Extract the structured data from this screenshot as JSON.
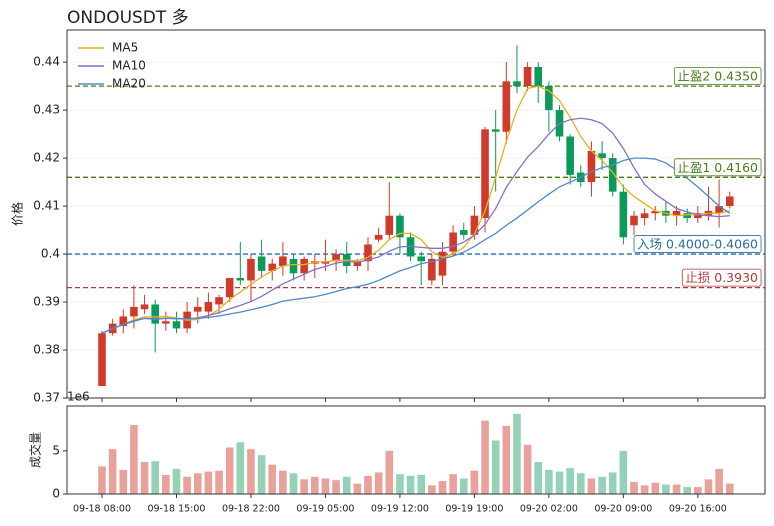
{
  "chart_data": {
    "type": "candlestick",
    "title": "ONDOUSDT  多",
    "y_label": "价格",
    "categories": [
      "09-18 08:00",
      null,
      null,
      null,
      null,
      null,
      null,
      "09-18 15:00",
      null,
      null,
      null,
      null,
      null,
      null,
      "09-18 22:00",
      null,
      null,
      null,
      null,
      null,
      null,
      "09-19 05:00",
      null,
      null,
      null,
      null,
      null,
      null,
      "09-19 12:00",
      null,
      null,
      null,
      null,
      null,
      null,
      "09-19 19:00",
      null,
      null,
      null,
      null,
      null,
      null,
      "09-20 02:00",
      null,
      null,
      null,
      null,
      null,
      null,
      "09-20 09:00",
      null,
      null,
      null,
      null,
      null,
      null,
      "09-20 16:00",
      null,
      null,
      null
    ],
    "open": [
      0.3725,
      0.3835,
      0.385,
      0.387,
      0.3885,
      0.3895,
      0.3855,
      0.386,
      0.3845,
      0.388,
      0.388,
      0.3895,
      0.391,
      0.395,
      0.3945,
      0.3995,
      0.3965,
      0.3975,
      0.399,
      0.396,
      0.398,
      0.398,
      0.3985,
      0.4,
      0.3975,
      0.3985,
      0.403,
      0.404,
      0.408,
      0.4035,
      0.3995,
      0.3945,
      0.3955,
      0.4005,
      0.405,
      0.404,
      0.4075,
      0.426,
      0.4255,
      0.436,
      0.435,
      0.439,
      0.435,
      0.43,
      0.4245,
      0.417,
      0.415,
      0.421,
      0.42,
      0.413,
      0.406,
      0.4075,
      0.4085,
      0.409,
      0.408,
      0.4085,
      0.4075,
      0.408,
      0.4085,
      0.41
    ],
    "high": [
      0.384,
      0.3865,
      0.3885,
      0.3935,
      0.3915,
      0.3905,
      0.388,
      0.388,
      0.39,
      0.391,
      0.392,
      0.3915,
      0.395,
      0.4025,
      0.4,
      0.403,
      0.399,
      0.4025,
      0.4,
      0.3995,
      0.4,
      0.403,
      0.401,
      0.4025,
      0.399,
      0.4035,
      0.4055,
      0.415,
      0.4085,
      0.4045,
      0.4005,
      0.4,
      0.4025,
      0.406,
      0.4065,
      0.41,
      0.4265,
      0.43,
      0.44,
      0.4435,
      0.44,
      0.44,
      0.436,
      0.431,
      0.425,
      0.4185,
      0.4235,
      0.4235,
      0.421,
      0.4145,
      0.409,
      0.4095,
      0.41,
      0.411,
      0.41,
      0.4095,
      0.41,
      0.414,
      0.4155,
      0.413
    ],
    "low": [
      0.3725,
      0.383,
      0.3835,
      0.3845,
      0.3875,
      0.3795,
      0.384,
      0.3835,
      0.3835,
      0.3855,
      0.3865,
      0.3875,
      0.39,
      0.3935,
      0.39,
      0.395,
      0.3945,
      0.3955,
      0.3945,
      0.3945,
      0.395,
      0.3965,
      0.3965,
      0.396,
      0.3965,
      0.3965,
      0.4025,
      0.403,
      0.4,
      0.3985,
      0.3935,
      0.3935,
      0.3935,
      0.3995,
      0.403,
      0.403,
      0.4045,
      0.413,
      0.423,
      0.4335,
      0.434,
      0.4315,
      0.4255,
      0.4235,
      0.4145,
      0.414,
      0.412,
      0.4175,
      0.412,
      0.402,
      0.404,
      0.406,
      0.407,
      0.4065,
      0.406,
      0.4065,
      0.4065,
      0.407,
      0.4055,
      0.4095
    ],
    "close": [
      0.3835,
      0.3855,
      0.387,
      0.389,
      0.3895,
      0.3855,
      0.386,
      0.3845,
      0.388,
      0.389,
      0.39,
      0.391,
      0.395,
      0.3945,
      0.399,
      0.3965,
      0.398,
      0.3995,
      0.396,
      0.399,
      0.3985,
      0.3985,
      0.4,
      0.3975,
      0.3985,
      0.402,
      0.404,
      0.408,
      0.4035,
      0.3995,
      0.3985,
      0.399,
      0.4005,
      0.4045,
      0.404,
      0.408,
      0.426,
      0.4255,
      0.436,
      0.435,
      0.439,
      0.435,
      0.43,
      0.4245,
      0.4165,
      0.415,
      0.4215,
      0.42,
      0.413,
      0.4035,
      0.408,
      0.4085,
      0.409,
      0.408,
      0.409,
      0.4075,
      0.4085,
      0.409,
      0.41,
      0.412
    ],
    "up_color": "#d03a2b",
    "down_color": "#0c9a5a",
    "series": [
      {
        "name": "MA5",
        "color": "#e8b21a",
        "values": [
          0.3835,
          0.3845,
          0.3853,
          0.3863,
          0.3869,
          0.3869,
          0.387,
          0.3867,
          0.3862,
          0.3864,
          0.3871,
          0.3885,
          0.3905,
          0.3921,
          0.3937,
          0.3952,
          0.3965,
          0.3975,
          0.3978,
          0.3978,
          0.3983,
          0.3984,
          0.3987,
          0.3987,
          0.3986,
          0.3993,
          0.4008,
          0.403,
          0.4043,
          0.4043,
          0.403,
          0.4005,
          0.3993,
          0.4,
          0.4014,
          0.4042,
          0.409,
          0.416,
          0.4235,
          0.43,
          0.4345,
          0.435,
          0.434,
          0.432,
          0.4285,
          0.4245,
          0.4215,
          0.4195,
          0.417,
          0.414,
          0.412,
          0.4105,
          0.409,
          0.4085,
          0.408,
          0.4082,
          0.4082,
          0.4085,
          0.4085,
          0.409
        ]
      },
      {
        "name": "MA10",
        "color": "#8a6fc9",
        "values": [
          0.3835,
          0.3845,
          0.3853,
          0.3861,
          0.3866,
          0.3864,
          0.3866,
          0.3865,
          0.3865,
          0.3867,
          0.3872,
          0.3878,
          0.3886,
          0.3893,
          0.3901,
          0.3912,
          0.3925,
          0.3938,
          0.3948,
          0.3958,
          0.3968,
          0.3974,
          0.3981,
          0.3985,
          0.3983,
          0.3988,
          0.3994,
          0.4006,
          0.4015,
          0.4016,
          0.4014,
          0.4012,
          0.4012,
          0.4016,
          0.4025,
          0.4039,
          0.4062,
          0.4095,
          0.4139,
          0.4172,
          0.4202,
          0.4224,
          0.425,
          0.4272,
          0.428,
          0.4283,
          0.428,
          0.4272,
          0.4252,
          0.422,
          0.418,
          0.4145,
          0.4125,
          0.411,
          0.4095,
          0.4088,
          0.4082,
          0.408,
          0.4078,
          0.408
        ]
      },
      {
        "name": "MA20",
        "color": "#4a8ccc",
        "values": [
          0.3835,
          0.3845,
          0.3853,
          0.386,
          0.3866,
          0.3865,
          0.3866,
          0.3866,
          0.3865,
          0.3866,
          0.3868,
          0.3871,
          0.3875,
          0.3879,
          0.3884,
          0.3889,
          0.3895,
          0.3902,
          0.3905,
          0.3908,
          0.3911,
          0.3916,
          0.3922,
          0.3928,
          0.3932,
          0.3937,
          0.3945,
          0.3955,
          0.3965,
          0.3972,
          0.398,
          0.3984,
          0.399,
          0.3996,
          0.4004,
          0.4016,
          0.403,
          0.4043,
          0.406,
          0.4075,
          0.4092,
          0.4109,
          0.4125,
          0.414,
          0.415,
          0.416,
          0.4172,
          0.418,
          0.4186,
          0.4195,
          0.42,
          0.42,
          0.4198,
          0.419,
          0.4175,
          0.4158,
          0.414,
          0.412,
          0.41,
          0.4085
        ]
      }
    ],
    "levels": [
      {
        "label": "止盈2 0.4350",
        "value": 0.435,
        "color": "#4a7d1c"
      },
      {
        "label": "止盈1 0.4160",
        "value": 0.416,
        "color": "#4a7d1c"
      },
      {
        "label": "入场 0.4000-0.4060",
        "value": 0.4,
        "color": "#2a6ca8"
      },
      {
        "label": "止损 0.3930",
        "value": 0.393,
        "color": "#b03a3a"
      }
    ],
    "ylim": [
      0.37,
      0.4467
    ],
    "yticks": [
      0.37,
      0.38,
      0.39,
      0.4,
      0.41,
      0.42,
      0.43,
      0.44
    ],
    "grid": true,
    "legend": "upper left",
    "volume": {
      "y_label": "成交量",
      "offset_label": "1e6",
      "values": [
        3.2,
        5.2,
        2.8,
        8.0,
        3.7,
        3.8,
        2.2,
        2.9,
        2.0,
        2.4,
        2.6,
        2.7,
        5.4,
        6.0,
        5.2,
        4.5,
        3.4,
        2.7,
        2.4,
        1.7,
        2.0,
        1.8,
        1.6,
        2.0,
        1.2,
        2.1,
        2.5,
        5.0,
        2.3,
        2.1,
        2.2,
        1.0,
        1.5,
        2.3,
        1.8,
        2.7,
        8.5,
        6.2,
        7.9,
        9.3,
        5.7,
        3.7,
        2.8,
        2.6,
        3.0,
        2.4,
        1.8,
        2.0,
        2.5,
        5.0,
        1.4,
        1.0,
        1.3,
        1.1,
        1.1,
        0.8,
        0.8,
        1.7,
        2.9,
        1.2
      ],
      "up_color": "#e8a19b",
      "down_color": "#93d2b7",
      "ylim": [
        0,
        10.2
      ],
      "yticks": [
        0,
        5
      ]
    }
  }
}
